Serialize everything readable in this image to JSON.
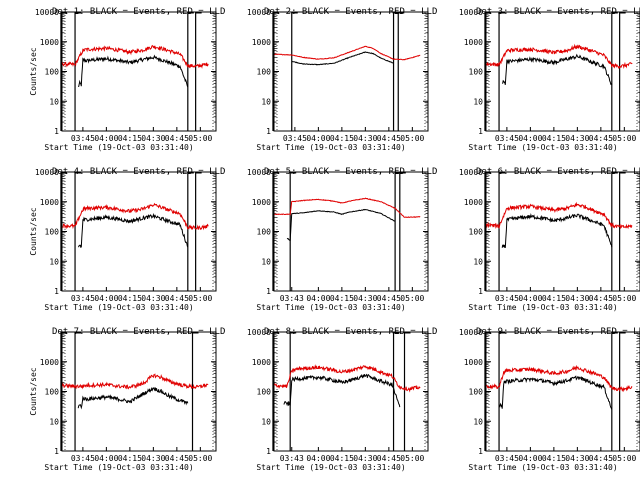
{
  "chart_data": [
    {
      "type": "line",
      "title": "Det 1: BLACK = Events, RED = LLD",
      "xlabel": "Start Time (19-Oct-03 03:31:40)",
      "ylabel": "Counts/sec",
      "log_y": true,
      "ylim": [
        1,
        10000
      ],
      "x_tick_labels": [
        "03:45",
        "04:00",
        "04:15",
        "04:30",
        "04:45",
        "05:00"
      ],
      "y_tick_labels": [
        "1",
        "10",
        "100",
        "1000",
        "10000"
      ],
      "markers": {
        "left_ticks": [
          "03:31",
          "03:40"
        ],
        "right_ticks": [
          "04:52",
          "04:57"
        ]
      },
      "series": [
        {
          "name": "Events",
          "color": "#000000",
          "style": "noisy",
          "x": [
            "03:42",
            "03:43",
            "03:44",
            "03:45",
            "03:47",
            "04:00",
            "04:08",
            "04:15",
            "04:23",
            "04:30",
            "04:35",
            "04:40",
            "04:47",
            "04:52"
          ],
          "y": [
            30,
            40,
            35,
            250,
            230,
            270,
            230,
            200,
            250,
            300,
            250,
            200,
            150,
            30
          ]
        },
        {
          "name": "LLD",
          "color": "#e00000",
          "style": "noisy",
          "x": [
            "03:32",
            "03:40",
            "03:45",
            "03:47",
            "04:00",
            "04:08",
            "04:15",
            "04:23",
            "04:30",
            "04:35",
            "04:40",
            "04:47",
            "04:52",
            "04:58",
            "05:05"
          ],
          "y": [
            180,
            170,
            500,
            550,
            600,
            520,
            450,
            520,
            700,
            600,
            500,
            380,
            160,
            150,
            180
          ]
        }
      ]
    },
    {
      "type": "line",
      "title": "Det 2: BLACK = Events, RED = LLD",
      "xlabel": "Start Time (19-Oct-03 03:31:40)",
      "ylabel": "",
      "log_y": true,
      "ylim": [
        1,
        10000
      ],
      "x_tick_labels": [
        "03:45",
        "04:00",
        "04:15",
        "04:30",
        "04:45",
        "05:00"
      ],
      "y_tick_labels": [
        "1",
        "10",
        "100",
        "1000",
        "10000"
      ],
      "markers": {
        "left_ticks": [
          "03:31",
          "03:43"
        ],
        "right_ticks": [
          "04:48",
          "04:51"
        ]
      },
      "series": [
        {
          "name": "Events",
          "color": "#000000",
          "style": "smooth",
          "x": [
            "03:43",
            "03:50",
            "04:00",
            "04:10",
            "04:20",
            "04:30",
            "04:35",
            "04:40",
            "04:48"
          ],
          "y": [
            220,
            180,
            170,
            190,
            300,
            450,
            400,
            280,
            190
          ]
        },
        {
          "name": "LLD",
          "color": "#e00000",
          "style": "smooth",
          "x": [
            "03:32",
            "03:43",
            "03:50",
            "04:00",
            "04:10",
            "04:20",
            "04:30",
            "04:35",
            "04:40",
            "04:48",
            "04:55",
            "05:05"
          ],
          "y": [
            380,
            360,
            300,
            260,
            290,
            450,
            700,
            600,
            400,
            260,
            250,
            350
          ]
        }
      ]
    },
    {
      "type": "line",
      "title": "Det 3: BLACK = Events, RED = LLD",
      "xlabel": "Start Time (19-Oct-03 03:31:40)",
      "ylabel": "",
      "log_y": true,
      "ylim": [
        1,
        10000
      ],
      "x_tick_labels": [
        "03:45",
        "04:00",
        "04:15",
        "04:30",
        "04:45",
        "05:00"
      ],
      "y_tick_labels": [
        "1",
        "10",
        "100",
        "1000",
        "10000"
      ],
      "markers": {
        "left_ticks": [
          "03:31",
          "03:40"
        ],
        "right_ticks": [
          "04:52",
          "04:57"
        ]
      },
      "series": [
        {
          "name": "Events",
          "color": "#000000",
          "style": "noisy",
          "x": [
            "03:42",
            "03:43",
            "03:44",
            "03:45",
            "03:47",
            "04:00",
            "04:08",
            "04:15",
            "04:23",
            "04:30",
            "04:35",
            "04:40",
            "04:47",
            "04:52"
          ],
          "y": [
            40,
            45,
            40,
            230,
            220,
            260,
            230,
            200,
            260,
            320,
            260,
            200,
            150,
            35
          ]
        },
        {
          "name": "LLD",
          "color": "#e00000",
          "style": "noisy",
          "x": [
            "03:32",
            "03:40",
            "03:45",
            "03:47",
            "04:00",
            "04:08",
            "04:15",
            "04:23",
            "04:30",
            "04:35",
            "04:40",
            "04:47",
            "04:52",
            "04:58",
            "05:05"
          ],
          "y": [
            180,
            170,
            500,
            520,
            560,
            500,
            430,
            500,
            700,
            580,
            480,
            350,
            160,
            150,
            180
          ]
        }
      ]
    },
    {
      "type": "line",
      "title": "Det 4: BLACK = Events, RED = LLD",
      "xlabel": "Start Time (19-Oct-03 03:31:40)",
      "ylabel": "Counts/sec",
      "log_y": true,
      "ylim": [
        1,
        10000
      ],
      "x_tick_labels": [
        "03:45",
        "04:00",
        "04:15",
        "04:30",
        "04:45",
        "05:00"
      ],
      "y_tick_labels": [
        "1",
        "10",
        "100",
        "1000",
        "10000"
      ],
      "markers": {
        "left_ticks": [
          "03:31",
          "03:40"
        ],
        "right_ticks": [
          "04:52",
          "04:57"
        ]
      },
      "series": [
        {
          "name": "Events",
          "color": "#000000",
          "style": "noisy",
          "x": [
            "03:42",
            "03:43",
            "03:44",
            "03:45",
            "03:47",
            "04:00",
            "04:08",
            "04:15",
            "04:23",
            "04:30",
            "04:35",
            "04:40",
            "04:47",
            "04:52"
          ],
          "y": [
            30,
            35,
            30,
            250,
            250,
            300,
            260,
            220,
            280,
            330,
            270,
            220,
            170,
            30
          ]
        },
        {
          "name": "LLD",
          "color": "#e00000",
          "style": "noisy",
          "x": [
            "03:32",
            "03:40",
            "03:45",
            "03:47",
            "04:00",
            "04:08",
            "04:15",
            "04:23",
            "04:30",
            "04:35",
            "04:40",
            "04:47",
            "04:52",
            "04:58",
            "05:05"
          ],
          "y": [
            160,
            150,
            550,
            600,
            650,
            560,
            480,
            560,
            800,
            650,
            520,
            400,
            140,
            130,
            150
          ]
        }
      ]
    },
    {
      "type": "line",
      "title": "Det 5: BLACK = Events, RED = LLD",
      "xlabel": "Start Time (19-Oct-03 03:31:40)",
      "ylabel": "",
      "log_y": true,
      "ylim": [
        1,
        10000
      ],
      "x_tick_labels": [
        "03:43",
        "04:00",
        "04:15",
        "04:30",
        "04:45",
        "05:00"
      ],
      "y_tick_labels": [
        "1",
        "10",
        "100",
        "1000",
        "10000"
      ],
      "markers": {
        "left_ticks": [
          "03:31",
          "03:42"
        ],
        "right_ticks": [
          "04:49",
          "04:52"
        ]
      },
      "series": [
        {
          "name": "Events",
          "color": "#000000",
          "style": "smooth",
          "x": [
            "03:40",
            "03:41",
            "03:42",
            "03:43",
            "03:50",
            "04:00",
            "04:10",
            "04:15",
            "04:20",
            "04:30",
            "04:40",
            "04:49"
          ],
          "y": [
            60,
            55,
            50,
            400,
            420,
            500,
            450,
            380,
            450,
            550,
            400,
            220
          ]
        },
        {
          "name": "LLD",
          "color": "#e00000",
          "style": "smooth",
          "x": [
            "03:32",
            "03:42",
            "03:43",
            "03:50",
            "04:00",
            "04:10",
            "04:15",
            "04:20",
            "04:30",
            "04:40",
            "04:49",
            "04:55",
            "05:05"
          ],
          "y": [
            380,
            380,
            1000,
            1100,
            1200,
            1050,
            900,
            1050,
            1300,
            1000,
            600,
            300,
            310
          ]
        }
      ]
    },
    {
      "type": "line",
      "title": "Det 6: BLACK = Events, RED = LLD",
      "xlabel": "Start Time (19-Oct-03 03:31:40)",
      "ylabel": "",
      "log_y": true,
      "ylim": [
        1,
        10000
      ],
      "x_tick_labels": [
        "03:45",
        "04:00",
        "04:15",
        "04:30",
        "04:45",
        "05:00"
      ],
      "y_tick_labels": [
        "1",
        "10",
        "100",
        "1000",
        "10000"
      ],
      "markers": {
        "left_ticks": [
          "03:31",
          "03:40"
        ],
        "right_ticks": [
          "04:52",
          "04:57"
        ]
      },
      "series": [
        {
          "name": "Events",
          "color": "#000000",
          "style": "noisy",
          "x": [
            "03:42",
            "03:43",
            "03:44",
            "03:45",
            "03:47",
            "04:00",
            "04:08",
            "04:15",
            "04:23",
            "04:30",
            "04:35",
            "04:40",
            "04:47",
            "04:52"
          ],
          "y": [
            30,
            35,
            30,
            250,
            260,
            320,
            280,
            230,
            280,
            350,
            280,
            220,
            160,
            30
          ]
        },
        {
          "name": "LLD",
          "color": "#e00000",
          "style": "noisy",
          "x": [
            "03:32",
            "03:40",
            "03:45",
            "03:47",
            "04:00",
            "04:08",
            "04:15",
            "04:23",
            "04:30",
            "04:35",
            "04:40",
            "04:47",
            "04:52",
            "04:58",
            "05:05"
          ],
          "y": [
            170,
            150,
            600,
            620,
            700,
            600,
            520,
            600,
            800,
            680,
            520,
            380,
            160,
            140,
            150
          ]
        }
      ]
    },
    {
      "type": "line",
      "title": "Det 7: BLACK = Events, RED = LLD",
      "xlabel": "Start Time (19-Oct-03 03:31:40)",
      "ylabel": "Counts/sec",
      "log_y": true,
      "ylim": [
        1,
        10000
      ],
      "x_tick_labels": [
        "03:45",
        "04:00",
        "04:15",
        "04:30",
        "04:45",
        "05:00"
      ],
      "y_tick_labels": [
        "1",
        "10",
        "100",
        "1000"
      ],
      "markers": {
        "left_ticks": [
          "03:31",
          "03:40"
        ],
        "right_ticks": [
          "04:55"
        ]
      },
      "series": [
        {
          "name": "Events",
          "color": "#000000",
          "style": "noisy",
          "x": [
            "03:42",
            "03:43",
            "03:44",
            "03:45",
            "03:47",
            "04:00",
            "04:08",
            "04:15",
            "04:23",
            "04:30",
            "04:35",
            "04:40",
            "04:47",
            "04:52"
          ],
          "y": [
            30,
            35,
            30,
            60,
            55,
            65,
            55,
            45,
            80,
            130,
            100,
            70,
            50,
            40
          ]
        },
        {
          "name": "LLD",
          "color": "#e00000",
          "style": "noisy",
          "x": [
            "03:32",
            "03:40",
            "03:45",
            "03:47",
            "04:00",
            "04:08",
            "04:15",
            "04:23",
            "04:30",
            "04:35",
            "04:40",
            "04:47",
            "04:52",
            "04:58",
            "05:05"
          ],
          "y": [
            160,
            150,
            150,
            160,
            170,
            150,
            140,
            180,
            350,
            300,
            220,
            170,
            150,
            140,
            170
          ]
        }
      ]
    },
    {
      "type": "line",
      "title": "Det 8: BLACK = Events, RED = LLD",
      "xlabel": "Start Time (19-Oct-03 03:31:40)",
      "ylabel": "",
      "log_y": true,
      "ylim": [
        1,
        10000
      ],
      "x_tick_labels": [
        "03:43",
        "04:00",
        "04:15",
        "04:30",
        "04:45",
        "05:00"
      ],
      "y_tick_labels": [
        "1",
        "10",
        "100",
        "1000",
        "10000"
      ],
      "markers": {
        "left_ticks": [
          "03:31",
          "03:42"
        ],
        "right_ticks": [
          "04:48",
          "04:55"
        ]
      },
      "series": [
        {
          "name": "Events",
          "color": "#000000",
          "style": "noisy",
          "x": [
            "03:38",
            "03:40",
            "03:42",
            "03:43",
            "03:47",
            "04:00",
            "04:08",
            "04:15",
            "04:23",
            "04:30",
            "04:35",
            "04:40",
            "04:47",
            "04:52"
          ],
          "y": [
            40,
            40,
            35,
            250,
            270,
            300,
            250,
            200,
            260,
            350,
            280,
            220,
            170,
            30
          ]
        },
        {
          "name": "LLD",
          "color": "#e00000",
          "style": "noisy",
          "x": [
            "03:32",
            "03:40",
            "03:43",
            "03:47",
            "04:00",
            "04:08",
            "04:15",
            "04:23",
            "04:30",
            "04:35",
            "04:40",
            "04:47",
            "04:52",
            "04:58",
            "05:05"
          ],
          "y": [
            160,
            150,
            500,
            580,
            650,
            550,
            450,
            550,
            700,
            580,
            450,
            330,
            140,
            120,
            140
          ]
        }
      ]
    },
    {
      "type": "line",
      "title": "Det 9: BLACK = Events, RED = LLD",
      "xlabel": "Start Time (19-Oct-03 03:31:40)",
      "ylabel": "",
      "log_y": true,
      "ylim": [
        1,
        10000
      ],
      "x_tick_labels": [
        "03:45",
        "04:00",
        "04:15",
        "04:30",
        "04:45",
        "05:00"
      ],
      "y_tick_labels": [
        "1",
        "10",
        "100",
        "1000",
        "10000"
      ],
      "markers": {
        "left_ticks": [
          "03:31",
          "03:40"
        ],
        "right_ticks": [
          "04:52",
          "04:57"
        ]
      },
      "series": [
        {
          "name": "Events",
          "color": "#000000",
          "style": "noisy",
          "x": [
            "03:40",
            "03:41",
            "03:42",
            "03:43",
            "03:45",
            "04:00",
            "04:08",
            "04:15",
            "04:23",
            "04:30",
            "04:35",
            "04:40",
            "04:47",
            "04:52"
          ],
          "y": [
            30,
            35,
            30,
            200,
            220,
            260,
            230,
            190,
            230,
            300,
            240,
            190,
            140,
            25
          ]
        },
        {
          "name": "LLD",
          "color": "#e00000",
          "style": "noisy",
          "x": [
            "03:32",
            "03:40",
            "03:43",
            "03:45",
            "04:00",
            "04:08",
            "04:15",
            "04:23",
            "04:30",
            "04:35",
            "04:40",
            "04:47",
            "04:52",
            "04:58",
            "05:05"
          ],
          "y": [
            150,
            140,
            450,
            500,
            560,
            480,
            400,
            470,
            650,
            520,
            420,
            300,
            130,
            120,
            140
          ]
        }
      ]
    }
  ]
}
